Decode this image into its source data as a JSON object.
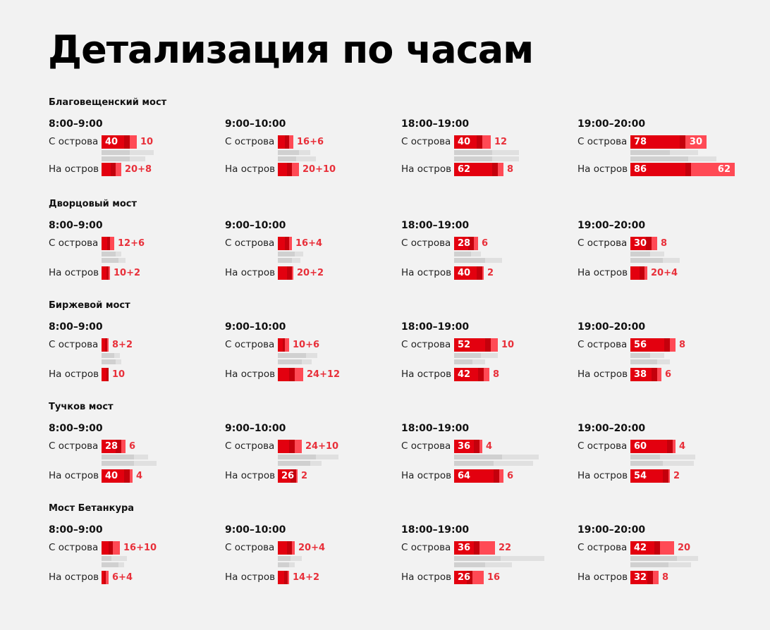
{
  "title": "Детализация по часам",
  "colors": {
    "background": "#f2f2f2",
    "main": "#e3000f",
    "main_dark": "#c4000c",
    "extra": "#ff4a55",
    "extra_text": "#e8303a",
    "reference_dark": "#d0d0d0",
    "reference_light": "#e0e0e0"
  },
  "row_labels": {
    "from": "С острова",
    "to": "На остров"
  },
  "chart_data": {
    "type": "bar",
    "periods": [
      "8:00–9:00",
      "9:00–10:00",
      "18:00–19:00",
      "19:00–20:00"
    ],
    "bridges": [
      {
        "name": "Благовещенский мост",
        "cells": [
          {
            "from": {
              "main": 40,
              "extra": 10,
              "text": "10",
              "ref": [
                [
                  40,
                  74
                ],
                [
                  40,
                  62
                ]
              ]
            },
            "to": {
              "main": 20,
              "extra": 8,
              "text": "20+8",
              "ref": []
            }
          },
          {
            "from": {
              "main": 16,
              "extra": 6,
              "text": "16+6",
              "ref": [
                [
                  30,
                  46
                ],
                [
                  26,
                  54
                ]
              ]
            },
            "to": {
              "main": 20,
              "extra": 10,
              "text": "20+10",
              "ref": []
            }
          },
          {
            "from": {
              "main": 40,
              "extra": 12,
              "text": "12",
              "ref": [
                [
                  54,
                  92
                ],
                [
                  54,
                  92
                ]
              ]
            },
            "to": {
              "main": 62,
              "extra": 8,
              "text": "8",
              "ref": []
            }
          },
          {
            "from": {
              "main": 78,
              "extra": 30,
              "text": "30",
              "ref": [
                [
                  56,
                  96
                ],
                [
                  82,
                  122
                ]
              ]
            },
            "to": {
              "main": 86,
              "extra": 62,
              "text": "62",
              "ref": []
            }
          }
        ]
      },
      {
        "name": "Дворцовый мост",
        "cells": [
          {
            "from": {
              "main": 12,
              "extra": 6,
              "text": "12+6",
              "ref": [
                [
                  20,
                  28
                ],
                [
                  24,
                  34
                ]
              ]
            },
            "to": {
              "main": 10,
              "extra": 2,
              "text": "10+2",
              "ref": []
            }
          },
          {
            "from": {
              "main": 16,
              "extra": 4,
              "text": "16+4",
              "ref": [
                [
                  24,
                  36
                ],
                [
                  20,
                  32
                ]
              ]
            },
            "to": {
              "main": 20,
              "extra": 2,
              "text": "20+2",
              "ref": []
            }
          },
          {
            "from": {
              "main": 28,
              "extra": 6,
              "text": "6",
              "ref": [
                [
                  24,
                  38
                ],
                [
                  44,
                  68
                ]
              ]
            },
            "to": {
              "main": 40,
              "extra": 2,
              "text": "2",
              "ref": []
            }
          },
          {
            "from": {
              "main": 30,
              "extra": 8,
              "text": "8",
              "ref": [
                [
                  28,
                  48
                ],
                [
                  46,
                  70
                ]
              ]
            },
            "to": {
              "main": 20,
              "extra": 4,
              "text": "20+4",
              "ref": []
            }
          }
        ]
      },
      {
        "name": "Биржевой мост",
        "cells": [
          {
            "from": {
              "main": 8,
              "extra": 2,
              "text": "8+2",
              "ref": [
                [
                  18,
                  26
                ],
                [
                  20,
                  28
                ]
              ]
            },
            "to": {
              "main": 10,
              "extra": 0,
              "text": "10",
              "ref": []
            }
          },
          {
            "from": {
              "main": 10,
              "extra": 6,
              "text": "10+6",
              "ref": [
                [
                  40,
                  56
                ],
                [
                  34,
                  48
                ]
              ]
            },
            "to": {
              "main": 24,
              "extra": 12,
              "text": "24+12",
              "ref": []
            }
          },
          {
            "from": {
              "main": 52,
              "extra": 10,
              "text": "10",
              "ref": [
                [
                  38,
                  62
                ],
                [
                  26,
                  44
                ]
              ]
            },
            "to": {
              "main": 42,
              "extra": 8,
              "text": "8",
              "ref": []
            }
          },
          {
            "from": {
              "main": 56,
              "extra": 8,
              "text": "8",
              "ref": [
                [
                  28,
                  48
                ],
                [
                  38,
                  56
                ]
              ]
            },
            "to": {
              "main": 38,
              "extra": 6,
              "text": "6",
              "ref": []
            }
          }
        ]
      },
      {
        "name": "Тучков мост",
        "cells": [
          {
            "from": {
              "main": 28,
              "extra": 6,
              "text": "6",
              "ref": [
                [
                  46,
                  66
                ],
                [
                  46,
                  78
                ]
              ]
            },
            "to": {
              "main": 40,
              "extra": 4,
              "text": "4",
              "ref": []
            }
          },
          {
            "from": {
              "main": 24,
              "extra": 10,
              "text": "24+10",
              "ref": [
                [
                  54,
                  86
                ],
                [
                  46,
                  62
                ]
              ]
            },
            "to": {
              "main": 26,
              "extra": 2,
              "text": "2",
              "ref": []
            }
          },
          {
            "from": {
              "main": 36,
              "extra": 4,
              "text": "4",
              "ref": [
                [
                  68,
                  120
                ],
                [
                  56,
                  112
                ]
              ]
            },
            "to": {
              "main": 64,
              "extra": 6,
              "text": "6",
              "ref": []
            }
          },
          {
            "from": {
              "main": 60,
              "extra": 4,
              "text": "4",
              "ref": [
                [
                  42,
                  92
                ],
                [
                  46,
                  90
                ]
              ]
            },
            "to": {
              "main": 54,
              "extra": 2,
              "text": "2",
              "ref": []
            }
          }
        ]
      },
      {
        "name": "Мост Бетанкура",
        "cells": [
          {
            "from": {
              "main": 16,
              "extra": 10,
              "text": "16+10",
              "ref": [
                [
                  14,
                  36
                ],
                [
                  24,
                  32
                ]
              ]
            },
            "to": {
              "main": 6,
              "extra": 4,
              "text": "6+4",
              "ref": []
            }
          },
          {
            "from": {
              "main": 20,
              "extra": 4,
              "text": "20+4",
              "ref": [
                [
                  18,
                  34
                ],
                [
                  16,
                  24
                ]
              ]
            },
            "to": {
              "main": 14,
              "extra": 2,
              "text": "14+2",
              "ref": []
            }
          },
          {
            "from": {
              "main": 36,
              "extra": 22,
              "text": "22",
              "ref": [
                [
                  66,
                  128
                ],
                [
                  44,
                  82
                ]
              ]
            },
            "to": {
              "main": 26,
              "extra": 16,
              "text": "16",
              "ref": []
            }
          },
          {
            "from": {
              "main": 42,
              "extra": 20,
              "text": "20",
              "ref": [
                [
                  66,
                  96
                ],
                [
                  54,
                  86
                ]
              ]
            },
            "to": {
              "main": 32,
              "extra": 8,
              "text": "8",
              "ref": []
            }
          }
        ]
      }
    ]
  }
}
